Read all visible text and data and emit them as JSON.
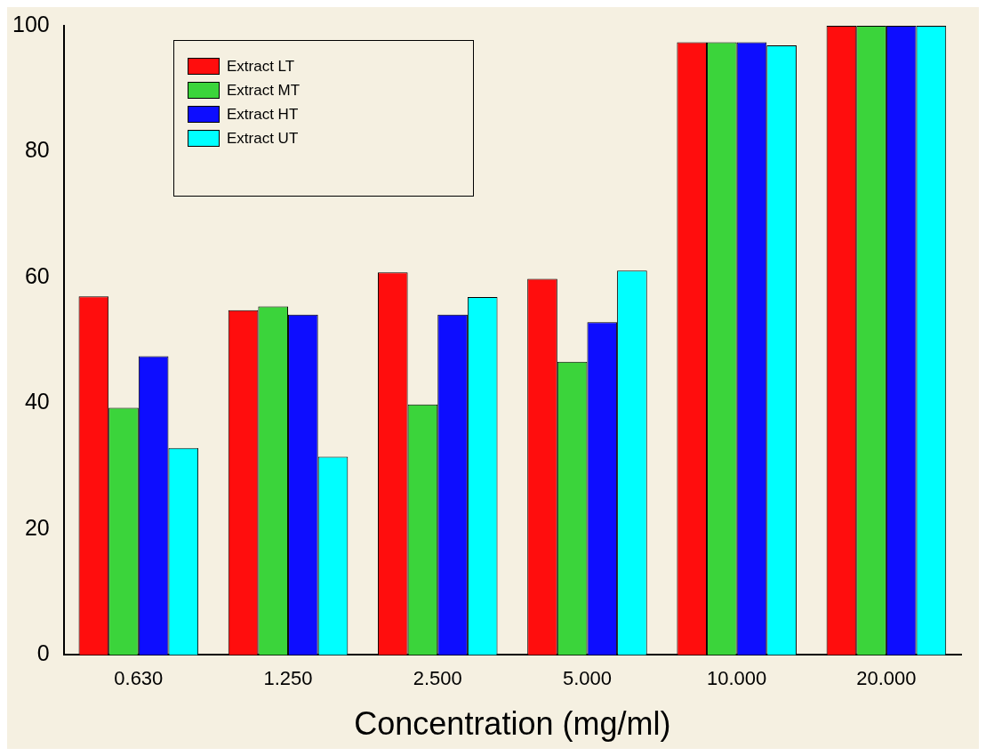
{
  "chart_data": {
    "type": "bar",
    "xlabel": "Concentration (mg/ml)",
    "categories": [
      "0.630",
      "1.250",
      "2.500",
      "5.000",
      "10.000",
      "20.000"
    ],
    "series": [
      {
        "name": "Extract LT",
        "color": "#ff0d0d",
        "values": [
          57,
          54.8,
          60.8,
          59.8,
          97.4,
          100
        ]
      },
      {
        "name": "Extract MT",
        "color": "#3bd43b",
        "values": [
          39.3,
          55.4,
          39.8,
          46.6,
          97.4,
          100
        ]
      },
      {
        "name": "Extract HT",
        "color": "#0d0dff",
        "values": [
          47.5,
          54.1,
          54.1,
          52.9,
          97.4,
          100
        ]
      },
      {
        "name": "Extract UT",
        "color": "#00ffff",
        "values": [
          32.9,
          31.5,
          56.9,
          61.1,
          96.9,
          100
        ]
      }
    ],
    "ylim": [
      0,
      100
    ],
    "yticks": [
      0,
      20,
      40,
      60,
      80,
      100
    ],
    "grid": false,
    "legend": "top left"
  }
}
